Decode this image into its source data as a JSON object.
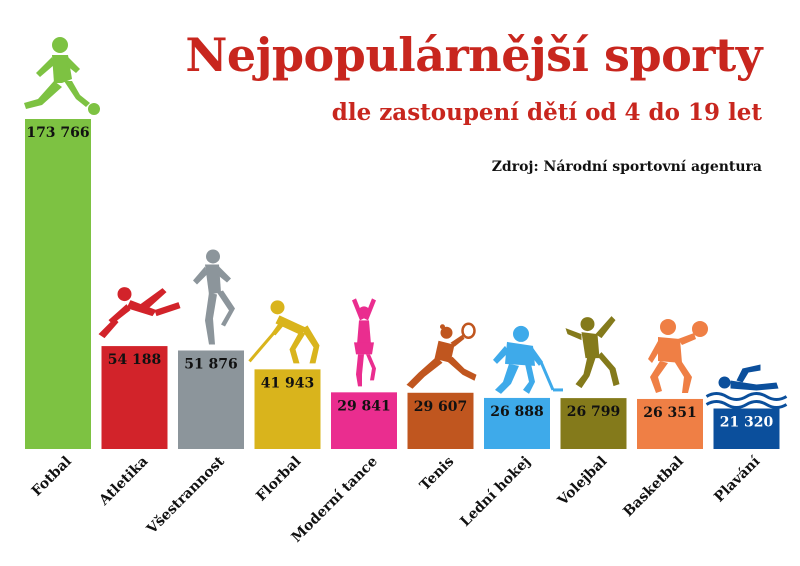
{
  "chart_data": {
    "type": "bar",
    "title": "Nejpopulárnější sporty",
    "subtitle": "dle zastoupení dětí od 4 do 19 let",
    "source": "Zdroj: Národní sportovní agentura",
    "ylim": [
      0,
      173766
    ],
    "categories": [
      "Fotbal",
      "Atletika",
      "Všestrannost",
      "Florbal",
      "Moderní tance",
      "Tenis",
      "Lední hokej",
      "Volejbal",
      "Basketbal",
      "Plavání"
    ],
    "values": [
      173766,
      54188,
      51876,
      41943,
      29841,
      29607,
      26888,
      26799,
      26351,
      21320
    ],
    "value_labels": [
      "173 766",
      "54 188",
      "51 876",
      "41 943",
      "29 841",
      "29 607",
      "26 888",
      "26 799",
      "26 351",
      "21 320"
    ],
    "colors": [
      "#7dc242",
      "#d2232a",
      "#8c959b",
      "#d9b41c",
      "#ea2d8f",
      "#c0561f",
      "#3eaaea",
      "#847a1b",
      "#ef7f45",
      "#0b4f9c"
    ],
    "icons": [
      "soccer-player-icon",
      "hurdler-icon",
      "gymnast-icon",
      "floorball-player-icon",
      "dancer-icon",
      "tennis-player-icon",
      "hockey-player-icon",
      "volleyball-player-icon",
      "basketball-player-icon",
      "swimmer-icon"
    ]
  }
}
